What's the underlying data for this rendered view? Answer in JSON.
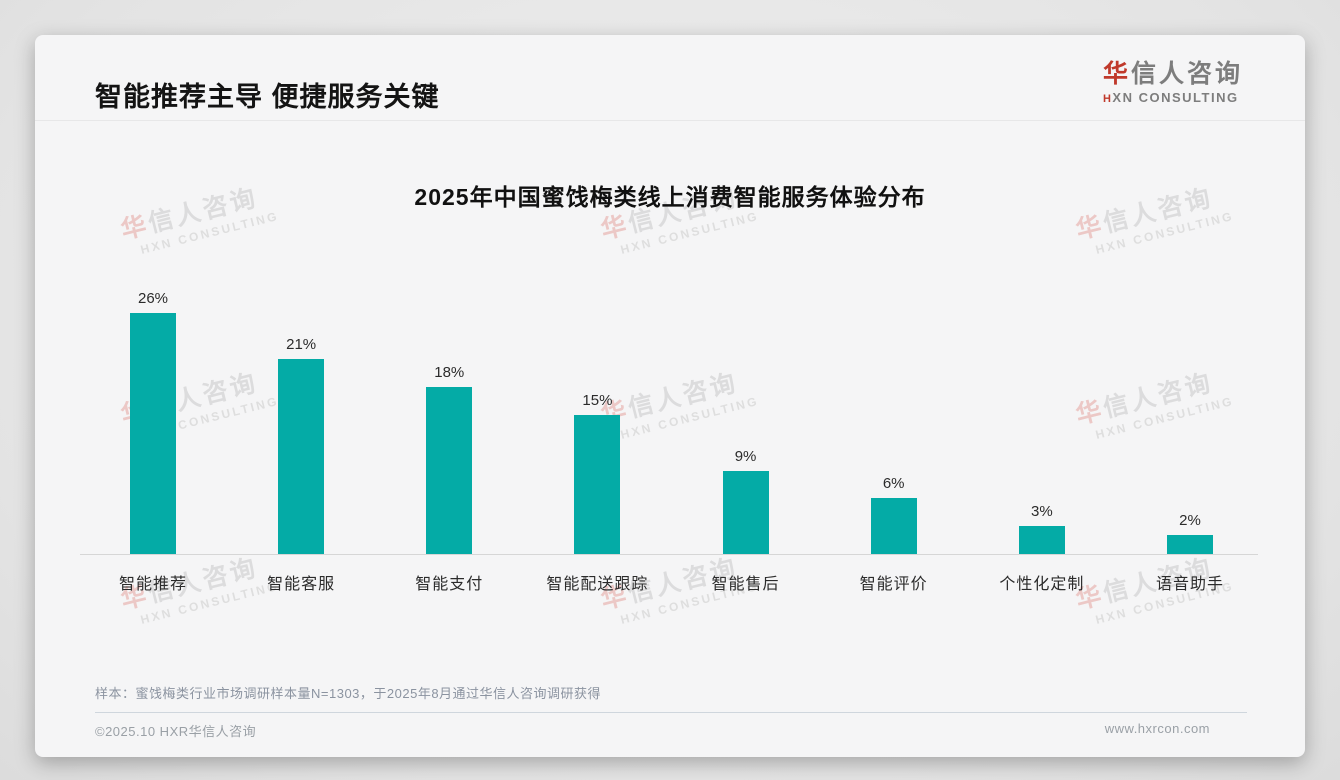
{
  "page": {
    "title": "智能推荐主导 便捷服务关键",
    "footnote": "样本：蜜饯梅类行业市场调研样本量N=1303，于2025年8月通过华信人咨询调研获得",
    "footer_left": "©2025.10 HXR华信人咨询",
    "footer_right": "www.hxrcon.com"
  },
  "logo": {
    "cn_first": "华",
    "cn_rest": "信人咨询",
    "en_first": "H",
    "en_rest": "XN CONSULTING"
  },
  "watermark": {
    "cn_first": "华",
    "cn_rest": "信人咨询",
    "en": "HXN CONSULTING"
  },
  "colors": {
    "bar": "#04aba6",
    "accent_red": "#c0392b"
  },
  "chart_data": {
    "type": "bar",
    "title": "2025年中国蜜饯梅类线上消费智能服务体验分布",
    "categories": [
      "智能推荐",
      "智能客服",
      "智能支付",
      "智能配送跟踪",
      "智能售后",
      "智能评价",
      "个性化定制",
      "语音助手"
    ],
    "values": [
      26,
      21,
      18,
      15,
      9,
      6,
      3,
      2
    ],
    "unit": "%",
    "ylabel": "",
    "xlabel": "",
    "ylim": [
      0,
      28
    ],
    "grid": false,
    "legend": "none",
    "bar_color": "#04aba6"
  }
}
